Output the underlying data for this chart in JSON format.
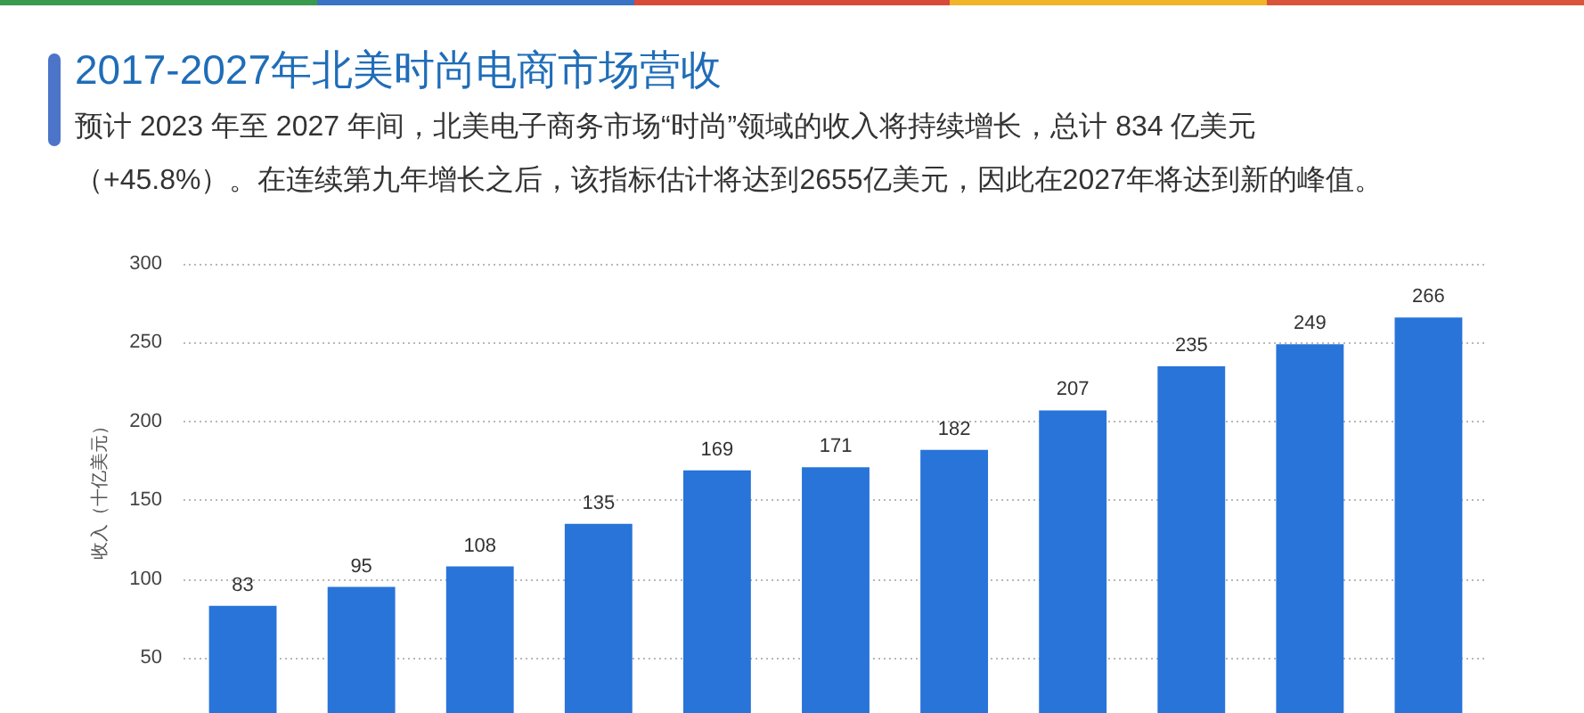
{
  "chart_data": {
    "type": "bar",
    "title": "2017-2027年北美时尚电商市场营收",
    "subtitle": "预计 2023 年至 2027 年间，北美电子商务市场“时尚”领域的收入将持续增长，总计 834 亿美元（+45.8%）。在连续第九年增长之后，该指标估计将达到2655亿美元，因此在2027年将达到新的峰值。",
    "ylabel": "收入（十亿美元）",
    "categories": [
      null,
      null,
      null,
      null,
      null,
      null,
      null,
      null,
      null,
      null,
      null
    ],
    "values": [
      83,
      95,
      108,
      135,
      169,
      171,
      182,
      207,
      235,
      249,
      266
    ],
    "color": "#2874d9",
    "ylim": [
      15,
      300
    ],
    "yticks": [
      50,
      100,
      150,
      200,
      250,
      300
    ],
    "grid": "y",
    "data_labels": true
  }
}
